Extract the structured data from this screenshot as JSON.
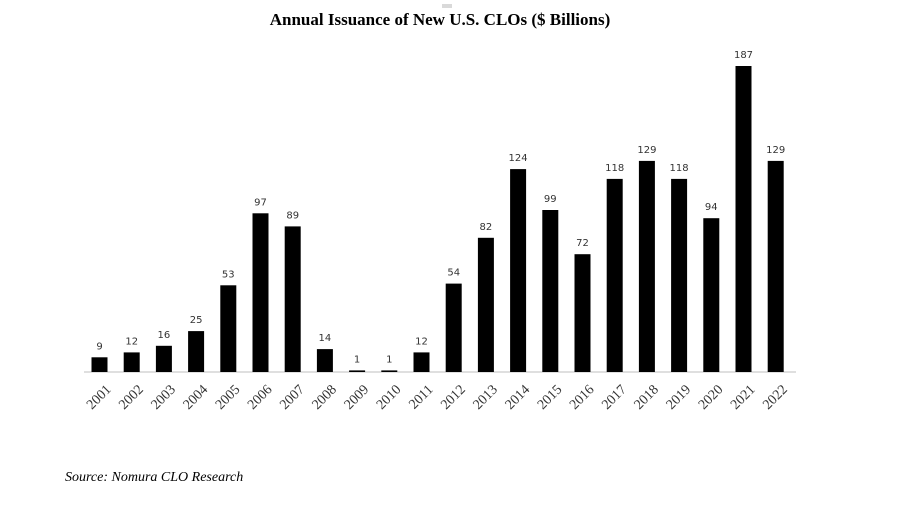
{
  "chart_data": {
    "type": "bar",
    "title": "Annual Issuance of New U.S. CLOs ($ Billions)",
    "source": "Source: Nomura CLO Research",
    "categories": [
      "2001",
      "2002",
      "2003",
      "2004",
      "2005",
      "2006",
      "2007",
      "2008",
      "2009",
      "2010",
      "2011",
      "2012",
      "2013",
      "2014",
      "2015",
      "2016",
      "2017",
      "2018",
      "2019",
      "2020",
      "2021",
      "2022"
    ],
    "values": [
      9,
      12,
      16,
      25,
      53,
      97,
      89,
      14,
      1,
      1,
      12,
      54,
      82,
      124,
      99,
      72,
      118,
      129,
      118,
      94,
      187,
      129
    ],
    "ylim": [
      0,
      187
    ],
    "grid": false,
    "colors": {
      "bar": "#000000"
    }
  }
}
